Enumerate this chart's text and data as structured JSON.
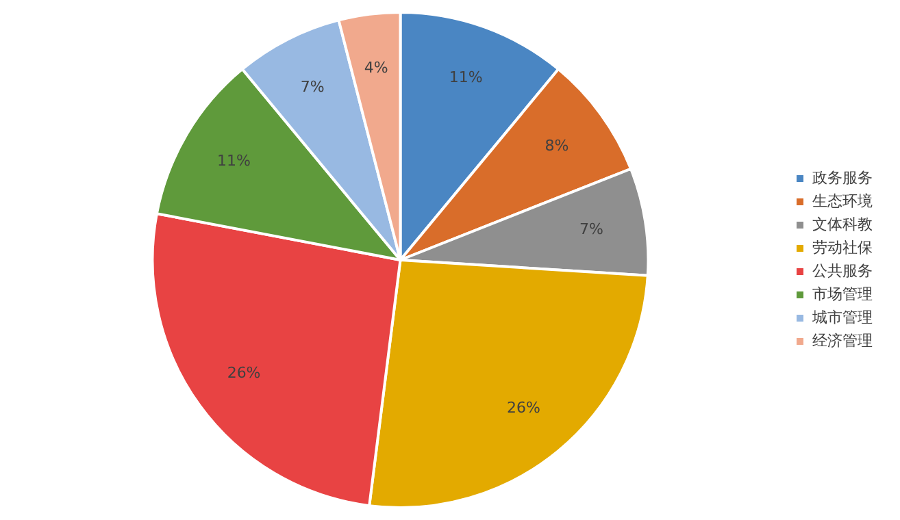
{
  "chart_data": {
    "type": "pie",
    "categories": [
      "政务服务",
      "生态环境",
      "文体科教",
      "劳动社保",
      "公共服务",
      "市场管理",
      "城市管理",
      "经济管理"
    ],
    "values": [
      11,
      8,
      7,
      26,
      26,
      11,
      7,
      4
    ],
    "value_labels": [
      "11%",
      "8%",
      "7%",
      "26%",
      "26%",
      "11%",
      "7%",
      "4%"
    ],
    "colors": [
      "#4a86c3",
      "#d96d2a",
      "#8f8f8f",
      "#e3aa00",
      "#e84343",
      "#5f9a3b",
      "#98b9e2",
      "#f1a98d"
    ],
    "legend": "right"
  }
}
